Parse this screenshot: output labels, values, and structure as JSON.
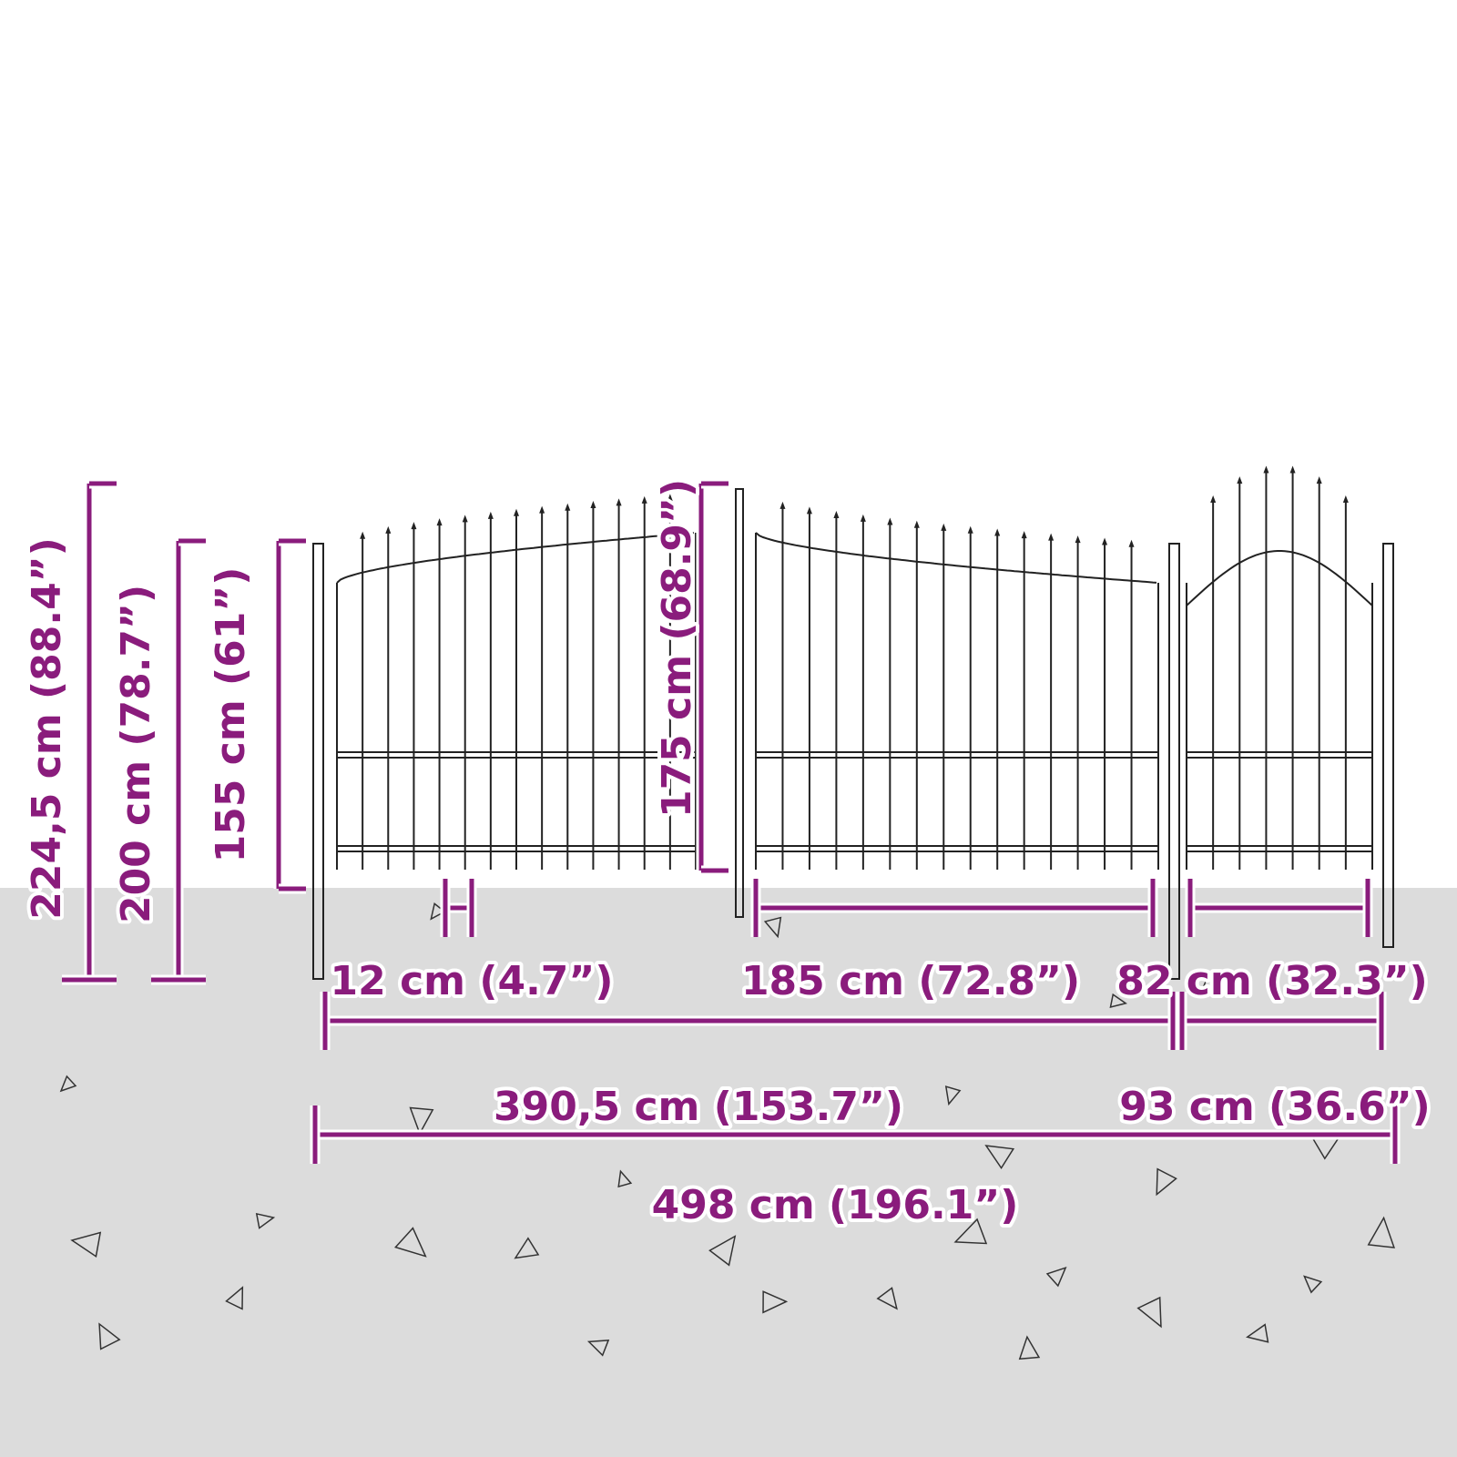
{
  "dimensions": {
    "total_height": "224,5 cm (88.4”)",
    "post_height": "200 cm (78.7”)",
    "side_height": "155 cm (61”)",
    "center_height": "175 cm (68.9”)",
    "picket_spacing": "12 cm (4.7”)",
    "double_gate_width": "185 cm (72.8”)",
    "single_gate_width": "82 cm (32.3”)",
    "double_gate_total": "390,5 cm (153.7”)",
    "single_gate_total": "93 cm (36.6”)",
    "total_width": "498 cm (196.1”)"
  }
}
